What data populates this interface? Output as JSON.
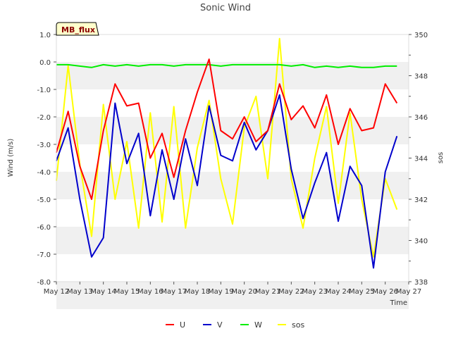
{
  "chart_data": {
    "type": "line",
    "title": "Sonic Wind",
    "site_label": "MB_flux",
    "xlabel": "Time",
    "ylabel": "Wind (m/s)",
    "y2label": "sos",
    "ylim": [
      -8.0,
      1.0
    ],
    "y2lim": [
      338,
      350
    ],
    "xlim": [
      "May 12",
      "May 27"
    ],
    "x_ticks": [
      "May 12",
      "May 13",
      "May 14",
      "May 15",
      "May 16",
      "May 17",
      "May 18",
      "May 19",
      "May 20",
      "May 21",
      "May 22",
      "May 23",
      "May 24",
      "May 25",
      "May 26",
      "May 27"
    ],
    "y_ticks": [
      "1.0",
      "0.0",
      "-1.0",
      "-2.0",
      "-3.0",
      "-4.0",
      "-5.0",
      "-6.0",
      "-7.0",
      "-8.0"
    ],
    "y2_ticks": [
      "350",
      "348",
      "346",
      "344",
      "342",
      "340",
      "338"
    ],
    "grid": "horizontal bands",
    "legend_position": "bottom-center",
    "colors": {
      "U": "#ff0000",
      "V": "#0000cc",
      "W": "#00ee00",
      "sos": "#ffff00",
      "band": "#f0f0f0",
      "site_label_bg": "#ffffcc"
    },
    "x_days": [
      0,
      0.5,
      1,
      1.5,
      2,
      2.5,
      3,
      3.5,
      4,
      4.5,
      5,
      5.5,
      6,
      6.5,
      7,
      7.5,
      8,
      8.5,
      9,
      9.5,
      10,
      10.5,
      11,
      11.5,
      12,
      12.5,
      13,
      13.5,
      14,
      14.5
    ],
    "series": [
      {
        "name": "U",
        "axis": "left",
        "values": [
          -3.3,
          -1.8,
          -3.8,
          -5.0,
          -2.5,
          -0.8,
          -1.6,
          -1.5,
          -3.5,
          -2.6,
          -4.2,
          -2.5,
          -1.1,
          0.1,
          -2.5,
          -2.8,
          -2.0,
          -2.9,
          -2.5,
          -0.8,
          -2.1,
          -1.6,
          -2.4,
          -1.2,
          -3.0,
          -1.7,
          -2.5,
          -2.4,
          -0.8,
          -1.5
        ]
      },
      {
        "name": "V",
        "axis": "left",
        "values": [
          -3.6,
          -2.4,
          -5.0,
          -7.1,
          -6.4,
          -1.5,
          -3.7,
          -2.6,
          -5.6,
          -3.2,
          -5.0,
          -2.8,
          -4.5,
          -1.6,
          -3.4,
          -3.6,
          -2.2,
          -3.2,
          -2.5,
          -1.2,
          -3.9,
          -5.7,
          -4.4,
          -3.3,
          -5.8,
          -3.8,
          -4.5,
          -7.5,
          -4.0,
          -2.7
        ]
      },
      {
        "name": "W",
        "axis": "left",
        "values": [
          -0.1,
          -0.1,
          -0.15,
          -0.2,
          -0.1,
          -0.15,
          -0.1,
          -0.15,
          -0.1,
          -0.1,
          -0.15,
          -0.1,
          -0.1,
          -0.1,
          -0.15,
          -0.1,
          -0.1,
          -0.1,
          -0.1,
          -0.1,
          -0.15,
          -0.1,
          -0.2,
          -0.15,
          -0.2,
          -0.15,
          -0.2,
          -0.2,
          -0.15,
          -0.15
        ]
      },
      {
        "name": "sos",
        "axis": "right",
        "values": [
          342.9,
          348.5,
          343.7,
          340.2,
          346.6,
          342.0,
          344.8,
          340.6,
          346.2,
          340.9,
          346.5,
          340.6,
          344.5,
          346.8,
          343.0,
          340.8,
          345.5,
          347.0,
          343.0,
          349.8,
          343.0,
          340.6,
          344.0,
          346.5,
          341.8,
          346.2,
          342.0,
          339.2,
          343.0,
          341.5
        ]
      }
    ]
  }
}
